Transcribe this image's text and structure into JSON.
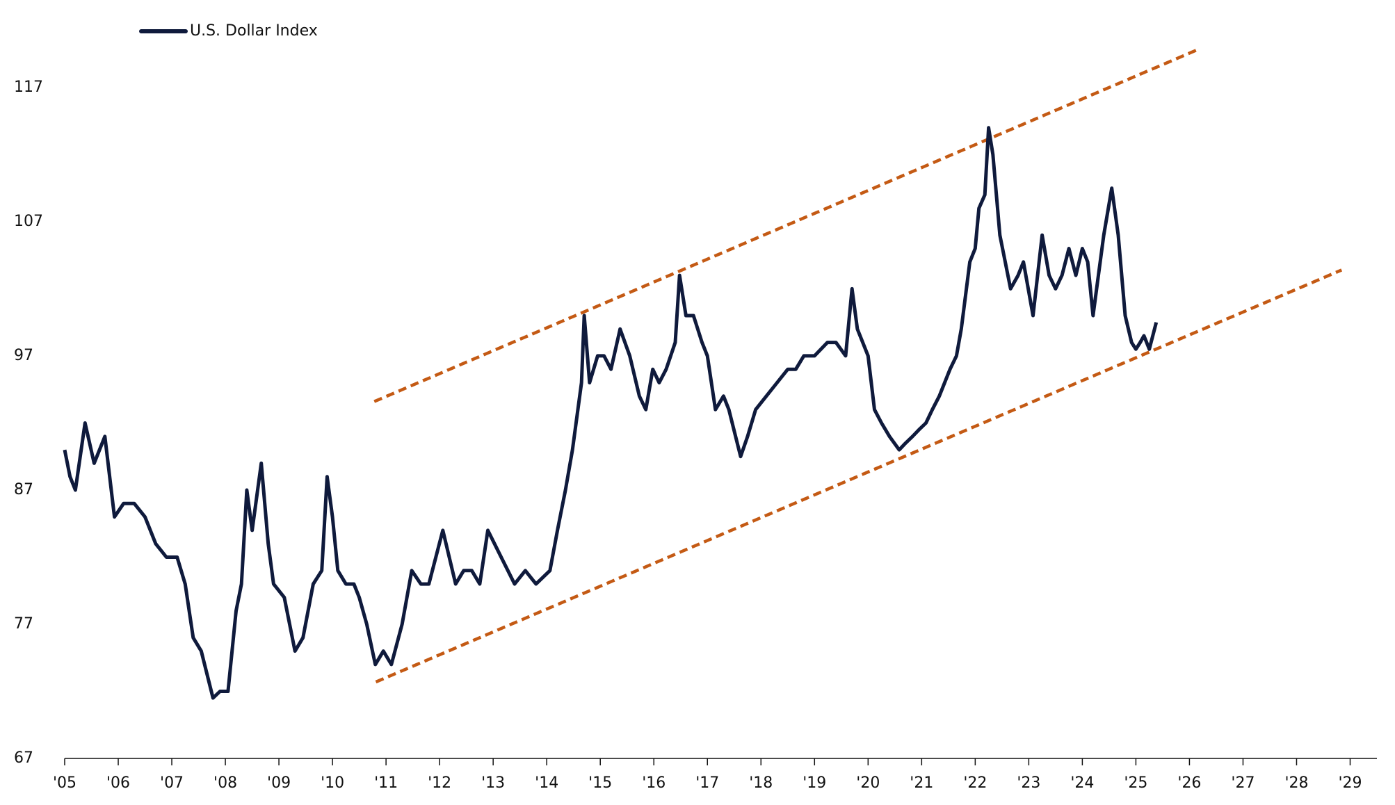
{
  "chart_data": {
    "type": "line",
    "legend": "top-left",
    "xlim": [
      2005,
      2029.5
    ],
    "ylim": [
      67,
      120
    ],
    "yticks": [
      67,
      77,
      87,
      97,
      107,
      117
    ],
    "xticks": [
      {
        "value": 2005,
        "label": "'05"
      },
      {
        "value": 2006,
        "label": "'06"
      },
      {
        "value": 2007,
        "label": "'07"
      },
      {
        "value": 2008,
        "label": "'08"
      },
      {
        "value": 2009,
        "label": "'09"
      },
      {
        "value": 2010,
        "label": "'10"
      },
      {
        "value": 2011,
        "label": "'11"
      },
      {
        "value": 2012,
        "label": "'12"
      },
      {
        "value": 2013,
        "label": "'13"
      },
      {
        "value": 2014,
        "label": "'14"
      },
      {
        "value": 2015,
        "label": "'15"
      },
      {
        "value": 2016,
        "label": "'16"
      },
      {
        "value": 2017,
        "label": "'17"
      },
      {
        "value": 2018,
        "label": "'18"
      },
      {
        "value": 2019,
        "label": "'19"
      },
      {
        "value": 2020,
        "label": "'20"
      },
      {
        "value": 2021,
        "label": "'21"
      },
      {
        "value": 2022,
        "label": "'22"
      },
      {
        "value": 2023,
        "label": "'23"
      },
      {
        "value": 2024,
        "label": "'24"
      },
      {
        "value": 2025,
        "label": "'25"
      },
      {
        "value": 2026,
        "label": "'26"
      },
      {
        "value": 2027,
        "label": "'27"
      },
      {
        "value": 2028,
        "label": "'28"
      },
      {
        "value": 2029,
        "label": "'29"
      }
    ],
    "series": [
      {
        "name": "U.S. Dollar Index",
        "color": "#0f1a3c",
        "x": [
          2005,
          2005.1,
          2005.2,
          2005.38,
          2005.55,
          2005.75,
          2005.93,
          2006.1,
          2006.3,
          2006.5,
          2006.7,
          2006.9,
          2007.1,
          2007.25,
          2007.4,
          2007.55,
          2007.77,
          2007.9,
          2008.05,
          2008.2,
          2008.3,
          2008.4,
          2008.5,
          2008.67,
          2008.8,
          2008.9,
          2009.1,
          2009.3,
          2009.45,
          2009.64,
          2009.8,
          2009.9,
          2010.0,
          2010.1,
          2010.25,
          2010.4,
          2010.5,
          2010.64,
          2010.8,
          2010.95,
          2011.1,
          2011.3,
          2011.48,
          2011.65,
          2011.8,
          2012.06,
          2012.3,
          2012.45,
          2012.6,
          2012.75,
          2012.9,
          2013.15,
          2013.4,
          2013.6,
          2013.8,
          2014.06,
          2014.2,
          2014.35,
          2014.48,
          2014.65,
          2014.7,
          2014.8,
          2014.95,
          2015.07,
          2015.2,
          2015.37,
          2015.55,
          2015.73,
          2015.85,
          2015.98,
          2016.1,
          2016.23,
          2016.4,
          2016.48,
          2016.6,
          2016.74,
          2016.9,
          2017.0,
          2017.15,
          2017.3,
          2017.4,
          2017.62,
          2017.75,
          2017.9,
          2018.1,
          2018.3,
          2018.5,
          2018.65,
          2018.8,
          2019.0,
          2019.24,
          2019.4,
          2019.58,
          2019.7,
          2019.8,
          2019.9,
          2020.0,
          2020.12,
          2020.25,
          2020.4,
          2020.58,
          2020.7,
          2020.83,
          2020.95,
          2021.08,
          2021.2,
          2021.33,
          2021.53,
          2021.65,
          2021.74,
          2021.9,
          2022.0,
          2022.07,
          2022.18,
          2022.25,
          2022.33,
          2022.46,
          2022.56,
          2022.66,
          2022.8,
          2022.9,
          2023.08,
          2023.25,
          2023.38,
          2023.5,
          2023.62,
          2023.75,
          2023.88,
          2024.0,
          2024.1,
          2024.2,
          2024.3,
          2024.4,
          2024.55,
          2024.67,
          2024.8,
          2024.92,
          2025.0,
          2025.08,
          2025.15,
          2025.25,
          2025.38
        ],
        "values": [
          90,
          88,
          87,
          92,
          89,
          91,
          85,
          86,
          86,
          85,
          83,
          82,
          82,
          80,
          76,
          75,
          71.5,
          72,
          72,
          78,
          80,
          87,
          84,
          89,
          83,
          80,
          79,
          75,
          76,
          80,
          81,
          88,
          85,
          81,
          80,
          80,
          79,
          77,
          74,
          75,
          74,
          77,
          81,
          80,
          80,
          84,
          80,
          81,
          81,
          80,
          84,
          82,
          80,
          81,
          80,
          81,
          84,
          87,
          90,
          95,
          100,
          95,
          97,
          97,
          96,
          99,
          97,
          94,
          93,
          96,
          95,
          96,
          98,
          103,
          100,
          100,
          98,
          97,
          93,
          94,
          93,
          89.5,
          91,
          93,
          94,
          95,
          96,
          96,
          97,
          97,
          98,
          98,
          97,
          102,
          99,
          98,
          97,
          93,
          92,
          91,
          90,
          90.5,
          91,
          91.5,
          92,
          93,
          94,
          96,
          97,
          99,
          104,
          105,
          108,
          109,
          114,
          112,
          106,
          104,
          102,
          103,
          104,
          100,
          106,
          103,
          102,
          103,
          105,
          103,
          105,
          104,
          100,
          103,
          106,
          109.5,
          106,
          100,
          98,
          97.5,
          98,
          98.5,
          97.5,
          99.5
        ]
      }
    ],
    "trend_lines": [
      {
        "color": "#c45a14",
        "x": [
          2010.78,
          2026.2
        ],
        "values": [
          93.6,
          119.9
        ]
      },
      {
        "color": "#c45a14",
        "x": [
          2010.81,
          2028.84
        ],
        "values": [
          72.7,
          103.4
        ]
      }
    ]
  }
}
